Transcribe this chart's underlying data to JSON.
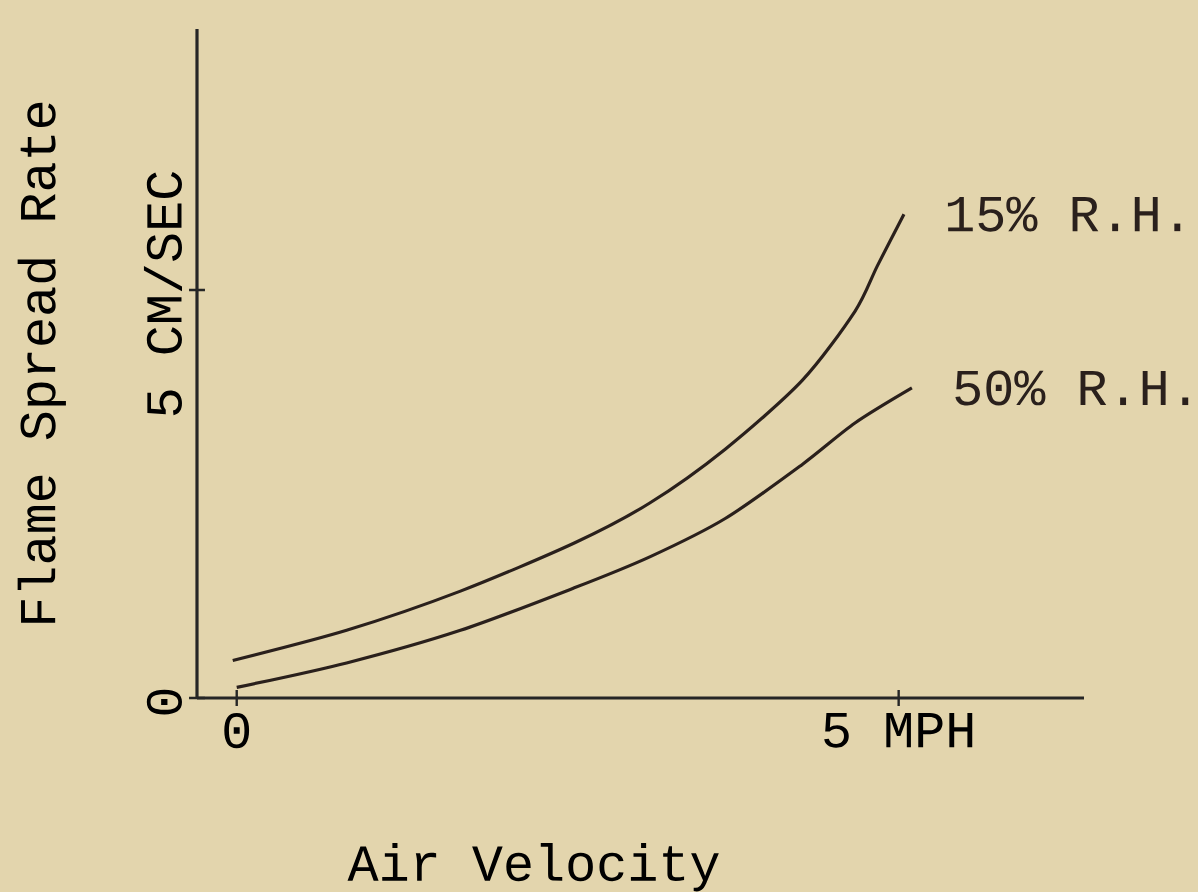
{
  "chart_data": {
    "type": "line",
    "xlabel": "Air Velocity",
    "ylabel": "Flame Spread Rate",
    "xlim": [
      -0.3,
      6.4
    ],
    "ylim": [
      0,
      8.2
    ],
    "xticks": [
      {
        "value": 0,
        "label": "0"
      },
      {
        "value": 5,
        "label": "5 MPH"
      }
    ],
    "yticks": [
      {
        "value": 0,
        "label": "0"
      },
      {
        "value": 5,
        "label": "5 CM/SEC"
      }
    ],
    "grid": false,
    "legend": false,
    "marker": "none",
    "line_style": "solid",
    "series": [
      {
        "name": "15% R.H.",
        "color": "#2a201c",
        "x": [
          -0.03,
          0.83,
          1.69,
          2.55,
          3.12,
          3.69,
          4.27,
          4.67,
          4.84,
          5.04
        ],
        "values": [
          0.46,
          0.83,
          1.31,
          1.9,
          2.39,
          3.05,
          3.89,
          4.74,
          5.3,
          5.93
        ]
      },
      {
        "name": "50% R.H.",
        "color": "#2a201c",
        "x": [
          0.0,
          0.83,
          1.69,
          2.55,
          3.12,
          3.69,
          4.27,
          4.67,
          5.1
        ],
        "values": [
          0.13,
          0.43,
          0.83,
          1.35,
          1.73,
          2.2,
          2.86,
          3.37,
          3.8
        ]
      }
    ]
  }
}
